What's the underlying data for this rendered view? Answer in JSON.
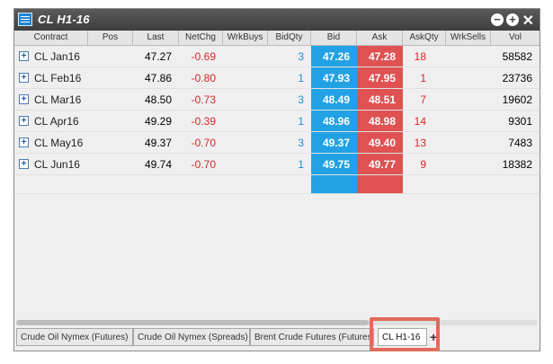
{
  "window": {
    "title": "CL H1-16",
    "controls": {
      "minimize": "−",
      "add": "+",
      "close": "✕"
    }
  },
  "columns": [
    "Contract",
    "Pos",
    "Last",
    "NetChg",
    "WrkBuys",
    "BidQty",
    "Bid",
    "Ask",
    "AskQty",
    "WrkSells",
    "Vol"
  ],
  "rows": [
    {
      "contract": "CL Jan16",
      "pos": "",
      "last": "47.27",
      "netchg": "-0.69",
      "wrkbuys": "",
      "bidqty": "3",
      "bid": "47.26",
      "ask": "47.28",
      "askqty": "18",
      "wrksells": "",
      "vol": "58582"
    },
    {
      "contract": "CL Feb16",
      "pos": "",
      "last": "47.86",
      "netchg": "-0.80",
      "wrkbuys": "",
      "bidqty": "1",
      "bid": "47.93",
      "ask": "47.95",
      "askqty": "1",
      "wrksells": "",
      "vol": "23736"
    },
    {
      "contract": "CL Mar16",
      "pos": "",
      "last": "48.50",
      "netchg": "-0.73",
      "wrkbuys": "",
      "bidqty": "3",
      "bid": "48.49",
      "ask": "48.51",
      "askqty": "7",
      "wrksells": "",
      "vol": "19602"
    },
    {
      "contract": "CL Apr16",
      "pos": "",
      "last": "49.29",
      "netchg": "-0.39",
      "wrkbuys": "",
      "bidqty": "1",
      "bid": "48.96",
      "ask": "48.98",
      "askqty": "14",
      "wrksells": "",
      "vol": "9301"
    },
    {
      "contract": "CL May16",
      "pos": "",
      "last": "49.37",
      "netchg": "-0.70",
      "wrkbuys": "",
      "bidqty": "3",
      "bid": "49.37",
      "ask": "49.40",
      "askqty": "13",
      "wrksells": "",
      "vol": "7483"
    },
    {
      "contract": "CL Jun16",
      "pos": "",
      "last": "49.74",
      "netchg": "-0.70",
      "wrkbuys": "",
      "bidqty": "1",
      "bid": "49.75",
      "ask": "49.77",
      "askqty": "9",
      "wrksells": "",
      "vol": "18382"
    }
  ],
  "tabs": [
    {
      "label": "Crude Oil Nymex (Futures)",
      "active": false
    },
    {
      "label": "Crude Oil Nymex (Spreads)",
      "active": false
    },
    {
      "label": "Brent Crude Futures (Futures)",
      "active": false
    },
    {
      "label": "CL H1-16",
      "active": true
    }
  ],
  "tab_add_label": "+",
  "colors": {
    "bid": "#22a2e4",
    "ask": "#e05252",
    "negative": "#d12828",
    "bidqty": "#1c8fd6",
    "highlight": "#e06b5b"
  }
}
